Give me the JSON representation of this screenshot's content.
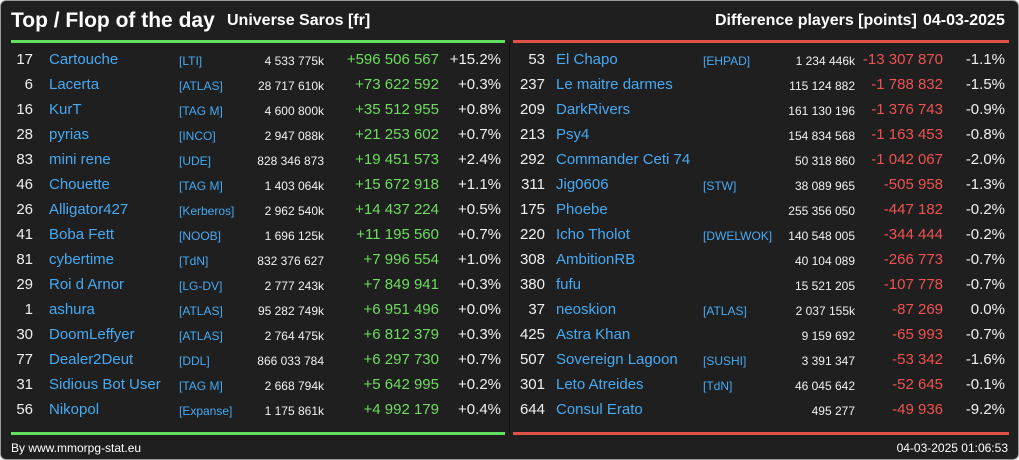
{
  "header": {
    "title": "Top / Flop of the day",
    "universe": "Universe Saros [fr]",
    "metric": "Difference players [points]",
    "date": "04-03-2025"
  },
  "colors": {
    "positive": "#6fdc5f",
    "negative": "#ee5252",
    "name": "#46aaf2",
    "background": "#1f1f1f"
  },
  "top": [
    {
      "rank": "17",
      "name": "Cartouche",
      "alliance": "[LTI]",
      "score": "4 533 775k",
      "delta": "+596 506 567",
      "pct": "+15.2%"
    },
    {
      "rank": "6",
      "name": "Lacerta",
      "alliance": "[ATLAS]",
      "score": "28 717 610k",
      "delta": "+73 622 592",
      "pct": "+0.3%"
    },
    {
      "rank": "16",
      "name": "KurT",
      "alliance": "[TAG M]",
      "score": "4 600 800k",
      "delta": "+35 512 955",
      "pct": "+0.8%"
    },
    {
      "rank": "28",
      "name": "pyrias",
      "alliance": "[INCO]",
      "score": "2 947 088k",
      "delta": "+21 253 602",
      "pct": "+0.7%"
    },
    {
      "rank": "83",
      "name": "mini rene",
      "alliance": "[UDE]",
      "score": "828 346 873",
      "delta": "+19 451 573",
      "pct": "+2.4%"
    },
    {
      "rank": "46",
      "name": "Chouette",
      "alliance": "[TAG M]",
      "score": "1 403 064k",
      "delta": "+15 672 918",
      "pct": "+1.1%"
    },
    {
      "rank": "26",
      "name": "Alligator427",
      "alliance": "[Kerberos]",
      "score": "2 962 540k",
      "delta": "+14 437 224",
      "pct": "+0.5%"
    },
    {
      "rank": "41",
      "name": "Boba Fett",
      "alliance": "[NOOB]",
      "score": "1 696 125k",
      "delta": "+11 195 560",
      "pct": "+0.7%"
    },
    {
      "rank": "81",
      "name": "cybertime",
      "alliance": "[TdN]",
      "score": "832 376 627",
      "delta": "+7 996 554",
      "pct": "+1.0%"
    },
    {
      "rank": "29",
      "name": "Roi d Arnor",
      "alliance": "[LG-DV]",
      "score": "2 777 243k",
      "delta": "+7 849 941",
      "pct": "+0.3%"
    },
    {
      "rank": "1",
      "name": "ashura",
      "alliance": "[ATLAS]",
      "score": "95 282 749k",
      "delta": "+6 951 496",
      "pct": "+0.0%"
    },
    {
      "rank": "30",
      "name": "DoomLeffyer",
      "alliance": "[ATLAS]",
      "score": "2 764 475k",
      "delta": "+6 812 379",
      "pct": "+0.3%"
    },
    {
      "rank": "77",
      "name": "Dealer2Deut",
      "alliance": "[DDL]",
      "score": "866 033 784",
      "delta": "+6 297 730",
      "pct": "+0.7%"
    },
    {
      "rank": "31",
      "name": "Sidious Bot User",
      "alliance": "[TAG M]",
      "score": "2 668 794k",
      "delta": "+5 642 995",
      "pct": "+0.2%"
    },
    {
      "rank": "56",
      "name": "Nikopol",
      "alliance": "[Expanse]",
      "score": "1 175 861k",
      "delta": "+4 992 179",
      "pct": "+0.4%"
    }
  ],
  "flop": [
    {
      "rank": "53",
      "name": "El Chapo",
      "alliance": "[EHPAD]",
      "score": "1 234 446k",
      "delta": "-13 307 870",
      "pct": "-1.1%"
    },
    {
      "rank": "237",
      "name": "Le maitre darmes",
      "alliance": "",
      "score": "115 124 882",
      "delta": "-1 788 832",
      "pct": "-1.5%"
    },
    {
      "rank": "209",
      "name": "DarkRivers",
      "alliance": "",
      "score": "161 130 196",
      "delta": "-1 376 743",
      "pct": "-0.9%"
    },
    {
      "rank": "213",
      "name": "Psy4",
      "alliance": "",
      "score": "154 834 568",
      "delta": "-1 163 453",
      "pct": "-0.8%"
    },
    {
      "rank": "292",
      "name": "Commander Ceti 74",
      "alliance": "",
      "score": "50 318 860",
      "delta": "-1 042 067",
      "pct": "-2.0%"
    },
    {
      "rank": "311",
      "name": "Jig0606",
      "alliance": "[STW]",
      "score": "38 089 965",
      "delta": "-505 958",
      "pct": "-1.3%"
    },
    {
      "rank": "175",
      "name": "Phoebe",
      "alliance": "",
      "score": "255 356 050",
      "delta": "-447 182",
      "pct": "-0.2%"
    },
    {
      "rank": "220",
      "name": "Icho Tholot",
      "alliance": "[DWELWOK]",
      "score": "140 548 005",
      "delta": "-344 444",
      "pct": "-0.2%"
    },
    {
      "rank": "308",
      "name": "AmbitionRB",
      "alliance": "",
      "score": "40 104 089",
      "delta": "-266 773",
      "pct": "-0.7%"
    },
    {
      "rank": "380",
      "name": "fufu",
      "alliance": "",
      "score": "15 521 205",
      "delta": "-107 778",
      "pct": "-0.7%"
    },
    {
      "rank": "37",
      "name": "neoskion",
      "alliance": "[ATLAS]",
      "score": "2 037 155k",
      "delta": "-87 269",
      "pct": "0.0%"
    },
    {
      "rank": "425",
      "name": "Astra Khan",
      "alliance": "",
      "score": "9 159 692",
      "delta": "-65 993",
      "pct": "-0.7%"
    },
    {
      "rank": "507",
      "name": "Sovereign Lagoon",
      "alliance": "[SUSHI]",
      "score": "3 391 347",
      "delta": "-53 342",
      "pct": "-1.6%"
    },
    {
      "rank": "301",
      "name": "Leto Atreides",
      "alliance": "[TdN]",
      "score": "46 045 642",
      "delta": "-52 645",
      "pct": "-0.1%"
    },
    {
      "rank": "644",
      "name": "Consul Erato",
      "alliance": "",
      "score": "495 277",
      "delta": "-49 936",
      "pct": "-9.2%"
    }
  ],
  "footer": {
    "source": "By www.mmorpg-stat.eu",
    "timestamp": "04-03-2025 01:06:53"
  }
}
